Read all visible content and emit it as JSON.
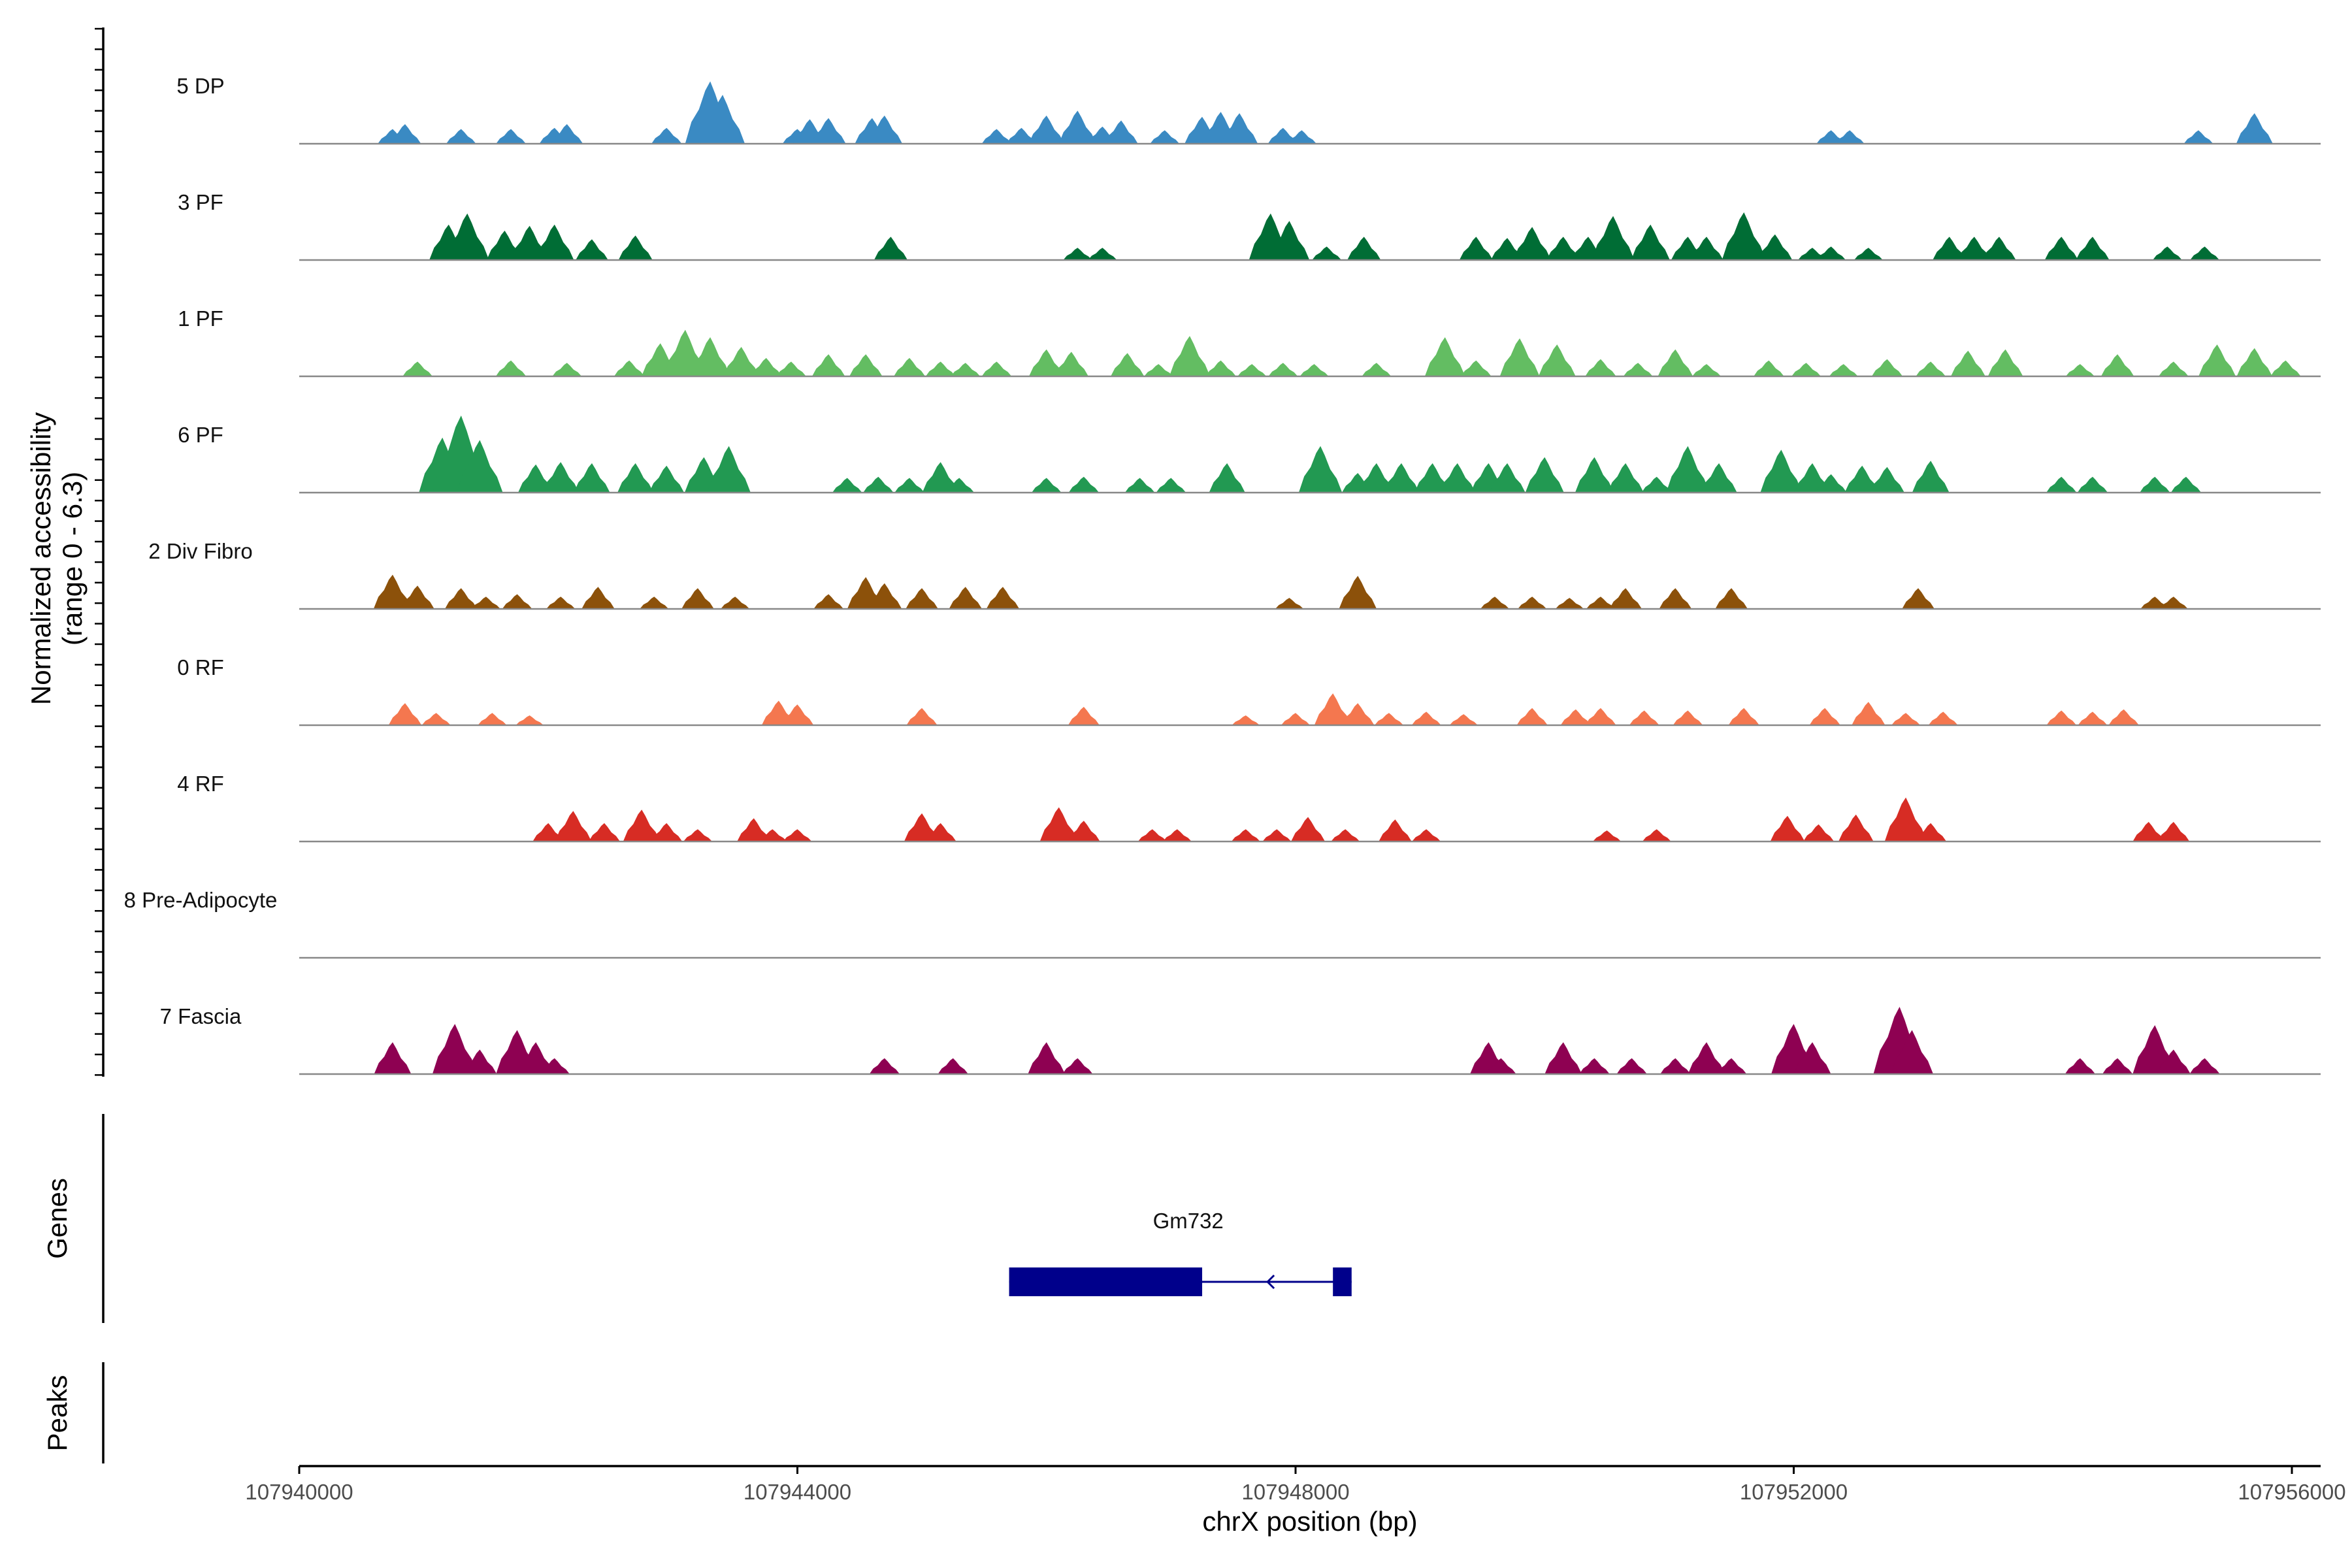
{
  "chart_data": {
    "type": "area",
    "subtype": "genome coverage plot",
    "ylabel": "Normalized accessibility",
    "ylabel_range": "(range 0 - 6.3)",
    "ylim": [
      0,
      6.3
    ],
    "xlabel": "chrX position (bp)",
    "chromosome": "chrX",
    "xlim": [
      107940000,
      107956000
    ],
    "xticks": [
      107940000,
      107944000,
      107948000,
      107952000,
      107956000
    ],
    "tracks": [
      {
        "name": "5 DP",
        "color": "#3a8ac3",
        "peaks": [
          [
            107940750,
            1.2
          ],
          [
            107940850,
            1.6
          ],
          [
            107941300,
            1.2
          ],
          [
            107941700,
            1.2
          ],
          [
            107942050,
            1.3
          ],
          [
            107942150,
            1.6
          ],
          [
            107942950,
            1.3
          ],
          [
            107943300,
            5.1
          ],
          [
            107943400,
            4.0
          ],
          [
            107944000,
            1.2
          ],
          [
            107944100,
            2.0
          ],
          [
            107944250,
            2.1
          ],
          [
            107944600,
            2.1
          ],
          [
            107944700,
            2.3
          ],
          [
            107945600,
            1.2
          ],
          [
            107945800,
            1.3
          ],
          [
            107946000,
            2.3
          ],
          [
            107946250,
            2.7
          ],
          [
            107946450,
            1.4
          ],
          [
            107946600,
            1.9
          ],
          [
            107946950,
            1.1
          ],
          [
            107947250,
            2.2
          ],
          [
            107947400,
            2.6
          ],
          [
            107947550,
            2.5
          ],
          [
            107947900,
            1.3
          ],
          [
            107948050,
            1.1
          ],
          [
            107952300,
            1.1
          ],
          [
            107952450,
            1.1
          ],
          [
            107955250,
            1.1
          ],
          [
            107955700,
            2.5
          ]
        ]
      },
      {
        "name": "3 PF",
        "color": "#006d35",
        "peaks": [
          [
            107941200,
            2.9
          ],
          [
            107941350,
            3.8
          ],
          [
            107941650,
            2.4
          ],
          [
            107941850,
            2.8
          ],
          [
            107942050,
            2.9
          ],
          [
            107942350,
            1.7
          ],
          [
            107942700,
            2.0
          ],
          [
            107944750,
            1.9
          ],
          [
            107946250,
            1.0
          ],
          [
            107946450,
            1.0
          ],
          [
            107947800,
            3.8
          ],
          [
            107947950,
            3.2
          ],
          [
            107948250,
            1.1
          ],
          [
            107948550,
            1.9
          ],
          [
            107949450,
            1.9
          ],
          [
            107949700,
            1.8
          ],
          [
            107949900,
            2.7
          ],
          [
            107950150,
            1.9
          ],
          [
            107950350,
            1.9
          ],
          [
            107950550,
            3.6
          ],
          [
            107950850,
            2.9
          ],
          [
            107951150,
            1.9
          ],
          [
            107951300,
            1.9
          ],
          [
            107951600,
            3.9
          ],
          [
            107951850,
            2.1
          ],
          [
            107952150,
            1.0
          ],
          [
            107952300,
            1.1
          ],
          [
            107952600,
            1.0
          ],
          [
            107953250,
            1.9
          ],
          [
            107953450,
            1.9
          ],
          [
            107953650,
            1.9
          ],
          [
            107954150,
            1.9
          ],
          [
            107954400,
            1.9
          ],
          [
            107955000,
            1.1
          ],
          [
            107955300,
            1.1
          ]
        ]
      },
      {
        "name": "1 PF",
        "color": "#63bd62",
        "peaks": [
          [
            107940950,
            1.2
          ],
          [
            107941700,
            1.3
          ],
          [
            107942150,
            1.1
          ],
          [
            107942650,
            1.3
          ],
          [
            107942900,
            2.7
          ],
          [
            107943100,
            3.8
          ],
          [
            107943300,
            3.2
          ],
          [
            107943550,
            2.4
          ],
          [
            107943750,
            1.5
          ],
          [
            107943950,
            1.2
          ],
          [
            107944250,
            1.8
          ],
          [
            107944550,
            1.8
          ],
          [
            107944900,
            1.5
          ],
          [
            107945150,
            1.2
          ],
          [
            107945350,
            1.1
          ],
          [
            107945600,
            1.2
          ],
          [
            107946000,
            2.2
          ],
          [
            107946200,
            2.0
          ],
          [
            107946650,
            1.9
          ],
          [
            107946900,
            1.0
          ],
          [
            107947150,
            3.3
          ],
          [
            107947400,
            1.3
          ],
          [
            107947650,
            1.0
          ],
          [
            107947900,
            1.1
          ],
          [
            107948150,
            1.0
          ],
          [
            107948650,
            1.1
          ],
          [
            107949200,
            3.2
          ],
          [
            107949450,
            1.3
          ],
          [
            107949800,
            3.1
          ],
          [
            107950100,
            2.6
          ],
          [
            107950450,
            1.4
          ],
          [
            107950750,
            1.1
          ],
          [
            107951050,
            2.2
          ],
          [
            107951300,
            1.0
          ],
          [
            107951800,
            1.3
          ],
          [
            107952100,
            1.1
          ],
          [
            107952400,
            1.0
          ],
          [
            107952750,
            1.4
          ],
          [
            107953100,
            1.2
          ],
          [
            107953400,
            2.1
          ],
          [
            107953700,
            2.2
          ],
          [
            107954300,
            1.0
          ],
          [
            107954600,
            1.8
          ],
          [
            107955050,
            1.2
          ],
          [
            107955400,
            2.6
          ],
          [
            107955700,
            2.3
          ],
          [
            107955950,
            1.3
          ]
        ]
      },
      {
        "name": "6 PF",
        "color": "#229952",
        "peaks": [
          [
            107941150,
            4.5
          ],
          [
            107941300,
            6.3
          ],
          [
            107941450,
            4.3
          ],
          [
            107941900,
            2.3
          ],
          [
            107942100,
            2.5
          ],
          [
            107942350,
            2.4
          ],
          [
            107942700,
            2.4
          ],
          [
            107942950,
            2.2
          ],
          [
            107943250,
            2.9
          ],
          [
            107943450,
            3.8
          ],
          [
            107944400,
            1.2
          ],
          [
            107944650,
            1.3
          ],
          [
            107944900,
            1.2
          ],
          [
            107945150,
            2.5
          ],
          [
            107945300,
            1.2
          ],
          [
            107946000,
            1.2
          ],
          [
            107946300,
            1.3
          ],
          [
            107946750,
            1.2
          ],
          [
            107947000,
            1.2
          ],
          [
            107947450,
            2.4
          ],
          [
            107948200,
            3.8
          ],
          [
            107948500,
            1.6
          ],
          [
            107948650,
            2.4
          ],
          [
            107948850,
            2.4
          ],
          [
            107949100,
            2.4
          ],
          [
            107949300,
            2.4
          ],
          [
            107949550,
            2.4
          ],
          [
            107949700,
            2.4
          ],
          [
            107950000,
            2.9
          ],
          [
            107950400,
            2.9
          ],
          [
            107950650,
            2.4
          ],
          [
            107950900,
            1.3
          ],
          [
            107951150,
            3.8
          ],
          [
            107951400,
            2.4
          ],
          [
            107951900,
            3.5
          ],
          [
            107952150,
            2.4
          ],
          [
            107952300,
            1.5
          ],
          [
            107952550,
            2.2
          ],
          [
            107952750,
            2.1
          ],
          [
            107953100,
            2.6
          ],
          [
            107954150,
            1.3
          ],
          [
            107954400,
            1.3
          ],
          [
            107954900,
            1.3
          ],
          [
            107955150,
            1.3
          ]
        ]
      },
      {
        "name": "2 Div Fibro",
        "color": "#8c510a",
        "peaks": [
          [
            107940750,
            2.8
          ],
          [
            107940950,
            1.9
          ],
          [
            107941300,
            1.7
          ],
          [
            107941500,
            1.0
          ],
          [
            107941750,
            1.2
          ],
          [
            107942100,
            1.0
          ],
          [
            107942400,
            1.8
          ],
          [
            107942850,
            1.0
          ],
          [
            107943200,
            1.7
          ],
          [
            107943500,
            1.0
          ],
          [
            107944250,
            1.2
          ],
          [
            107944550,
            2.6
          ],
          [
            107944700,
            2.1
          ],
          [
            107945000,
            1.7
          ],
          [
            107945350,
            1.8
          ],
          [
            107945650,
            1.8
          ],
          [
            107947950,
            0.9
          ],
          [
            107948500,
            2.7
          ],
          [
            107949600,
            1.0
          ],
          [
            107949900,
            1.0
          ],
          [
            107950200,
            0.9
          ],
          [
            107950450,
            1.0
          ],
          [
            107950650,
            1.7
          ],
          [
            107951050,
            1.7
          ],
          [
            107951500,
            1.7
          ],
          [
            107953000,
            1.7
          ],
          [
            107954900,
            1.0
          ],
          [
            107955050,
            1.0
          ]
        ]
      },
      {
        "name": "0 RF",
        "color": "#f4774f",
        "peaks": [
          [
            107940850,
            1.8
          ],
          [
            107941100,
            1.0
          ],
          [
            107941550,
            1.0
          ],
          [
            107941850,
            0.8
          ],
          [
            107943850,
            2.0
          ],
          [
            107944000,
            1.7
          ],
          [
            107945000,
            1.4
          ],
          [
            107946300,
            1.5
          ],
          [
            107947600,
            0.8
          ],
          [
            107948000,
            1.0
          ],
          [
            107948300,
            2.6
          ],
          [
            107948500,
            1.8
          ],
          [
            107948750,
            1.0
          ],
          [
            107949050,
            1.1
          ],
          [
            107949350,
            0.9
          ],
          [
            107949900,
            1.4
          ],
          [
            107950250,
            1.3
          ],
          [
            107950450,
            1.4
          ],
          [
            107950800,
            1.2
          ],
          [
            107951150,
            1.2
          ],
          [
            107951600,
            1.4
          ],
          [
            107952250,
            1.4
          ],
          [
            107952600,
            1.9
          ],
          [
            107952900,
            1.0
          ],
          [
            107953200,
            1.1
          ],
          [
            107954150,
            1.2
          ],
          [
            107954400,
            1.1
          ],
          [
            107954650,
            1.3
          ]
        ]
      },
      {
        "name": "4 RF",
        "color": "#d72c24",
        "peaks": [
          [
            107942000,
            1.5
          ],
          [
            107942200,
            2.5
          ],
          [
            107942450,
            1.5
          ],
          [
            107942750,
            2.6
          ],
          [
            107942950,
            1.5
          ],
          [
            107943200,
            1.0
          ],
          [
            107943650,
            1.9
          ],
          [
            107943800,
            1.0
          ],
          [
            107944000,
            1.0
          ],
          [
            107945000,
            2.3
          ],
          [
            107945150,
            1.5
          ],
          [
            107946100,
            2.8
          ],
          [
            107946300,
            1.7
          ],
          [
            107946850,
            1.0
          ],
          [
            107947050,
            1.0
          ],
          [
            107947600,
            1.0
          ],
          [
            107947850,
            1.0
          ],
          [
            107948100,
            2.0
          ],
          [
            107948400,
            1.0
          ],
          [
            107948800,
            1.8
          ],
          [
            107949050,
            1.0
          ],
          [
            107950500,
            0.9
          ],
          [
            107950900,
            1.0
          ],
          [
            107951950,
            2.1
          ],
          [
            107952200,
            1.4
          ],
          [
            107952500,
            2.2
          ],
          [
            107952900,
            3.6
          ],
          [
            107953100,
            1.5
          ],
          [
            107954850,
            1.6
          ],
          [
            107955050,
            1.6
          ]
        ]
      },
      {
        "name": "8 Pre-Adipocyte",
        "color": "#f2b29a",
        "peaks": []
      },
      {
        "name": "7 Fascia",
        "color": "#8e0152",
        "peaks": [
          [
            107940750,
            2.6
          ],
          [
            107941250,
            4.1
          ],
          [
            107941450,
            2.0
          ],
          [
            107941750,
            3.6
          ],
          [
            107941900,
            2.6
          ],
          [
            107942050,
            1.3
          ],
          [
            107944700,
            1.3
          ],
          [
            107945250,
            1.3
          ],
          [
            107946000,
            2.6
          ],
          [
            107946250,
            1.3
          ],
          [
            107949550,
            2.6
          ],
          [
            107949650,
            1.3
          ],
          [
            107950150,
            2.6
          ],
          [
            107950400,
            1.3
          ],
          [
            107950700,
            1.3
          ],
          [
            107951050,
            1.3
          ],
          [
            107951300,
            2.6
          ],
          [
            107951500,
            1.3
          ],
          [
            107952000,
            4.1
          ],
          [
            107952150,
            2.6
          ],
          [
            107952850,
            5.5
          ],
          [
            107952950,
            3.6
          ],
          [
            107954300,
            1.3
          ],
          [
            107954600,
            1.3
          ],
          [
            107954900,
            4.0
          ],
          [
            107955050,
            2.0
          ],
          [
            107955300,
            1.3
          ]
        ]
      }
    ],
    "genes_track_label": "Genes",
    "peaks_track_label": "Peaks",
    "genes": [
      {
        "name": "Gm732",
        "strand": "-",
        "start": 107945700,
        "end": 107948450,
        "exons": [
          [
            107945700,
            107947250
          ],
          [
            107948300,
            107948450
          ]
        ]
      }
    ]
  }
}
